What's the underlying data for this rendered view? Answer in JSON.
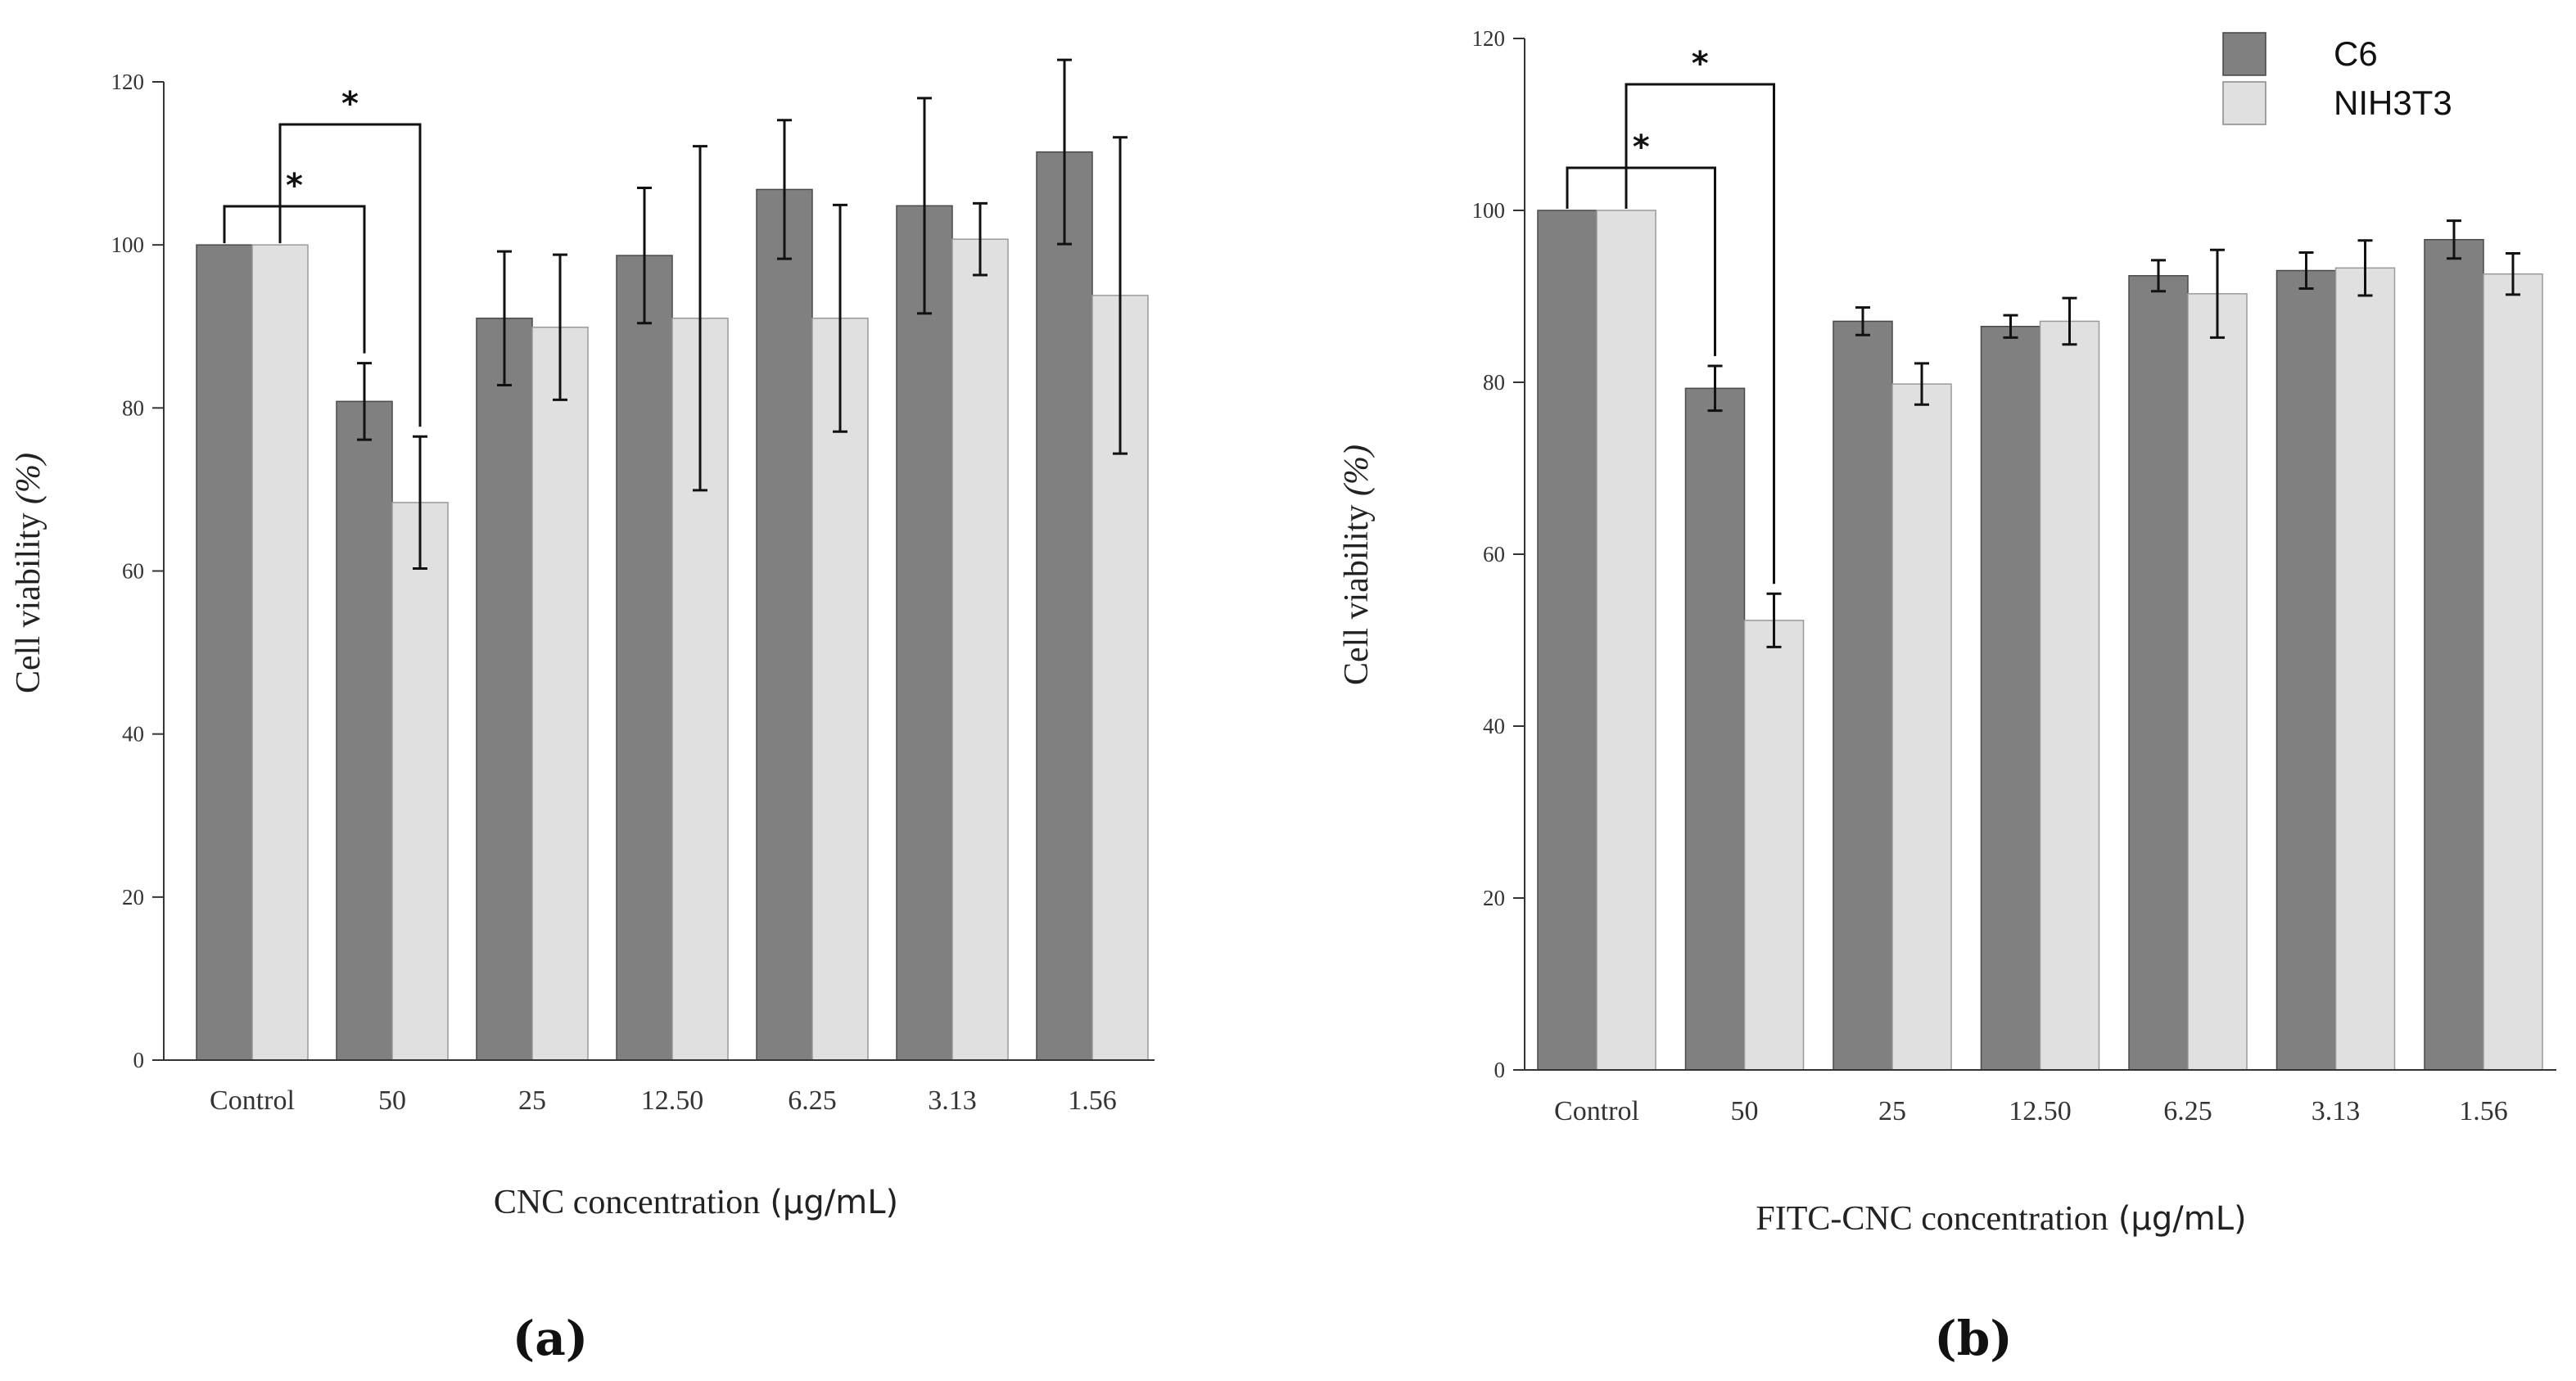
{
  "colors": {
    "c6": "#808080",
    "nih": "#e0e0e0",
    "axis": "#333333",
    "err": "#111111"
  },
  "legend": {
    "c6": "C6",
    "nih": "NIH3T3"
  },
  "chart_data": [
    {
      "type": "bar",
      "panel_label": "(a)",
      "title": "",
      "xlabel": "CNC concentration",
      "xunit": "(µg/mL)",
      "ylabel": "Cell viability",
      "yunit": "(%)",
      "ylim": [
        0,
        120
      ],
      "yticks": [
        0,
        20,
        40,
        60,
        80,
        100,
        120
      ],
      "categories": [
        "Control",
        "50",
        "25",
        "12.50",
        "6.25",
        "3.13",
        "1.56"
      ],
      "series": [
        {
          "name": "C6",
          "values": [
            100,
            80.8,
            91,
            98.7,
            106.8,
            104.8,
            111.4
          ],
          "errors": [
            0,
            4.7,
            8.2,
            8.3,
            8.5,
            13.2,
            11.3
          ]
        },
        {
          "name": "NIH3T3",
          "values": [
            100,
            68.4,
            89.9,
            91,
            91,
            100.7,
            93.8
          ],
          "errors": [
            0,
            8.1,
            8.9,
            21.1,
            13.9,
            4.4,
            19.4
          ]
        }
      ],
      "significance": [
        {
          "from": [
            0,
            0
          ],
          "to": [
            1,
            0
          ],
          "label": "*"
        },
        {
          "from": [
            0,
            1
          ],
          "to": [
            1,
            1
          ],
          "label": "*"
        }
      ]
    },
    {
      "type": "bar",
      "panel_label": "(b)",
      "title": "",
      "xlabel": "FITC-CNC concentration",
      "xunit": "(µg/mL)",
      "ylabel": "Cell viability",
      "yunit": "(%)",
      "ylim": [
        0,
        120
      ],
      "yticks": [
        0,
        20,
        40,
        60,
        80,
        100,
        120
      ],
      "categories": [
        "Control",
        "50",
        "25",
        "12.50",
        "6.25",
        "3.13",
        "1.56"
      ],
      "series": [
        {
          "name": "C6",
          "values": [
            100,
            79.3,
            87.1,
            86.5,
            92.4,
            93,
            96.6
          ],
          "errors": [
            0,
            2.6,
            1.6,
            1.3,
            1.8,
            2.1,
            2.2
          ]
        },
        {
          "name": "NIH3T3",
          "values": [
            100,
            52.3,
            79.8,
            87.1,
            90.3,
            93.3,
            92.6
          ],
          "errors": [
            0,
            3.1,
            2.4,
            2.7,
            5.1,
            3.2,
            2.4
          ]
        }
      ],
      "significance": [
        {
          "from": [
            0,
            0
          ],
          "to": [
            1,
            0
          ],
          "label": "*"
        },
        {
          "from": [
            0,
            1
          ],
          "to": [
            1,
            1
          ],
          "label": "*"
        }
      ]
    }
  ]
}
